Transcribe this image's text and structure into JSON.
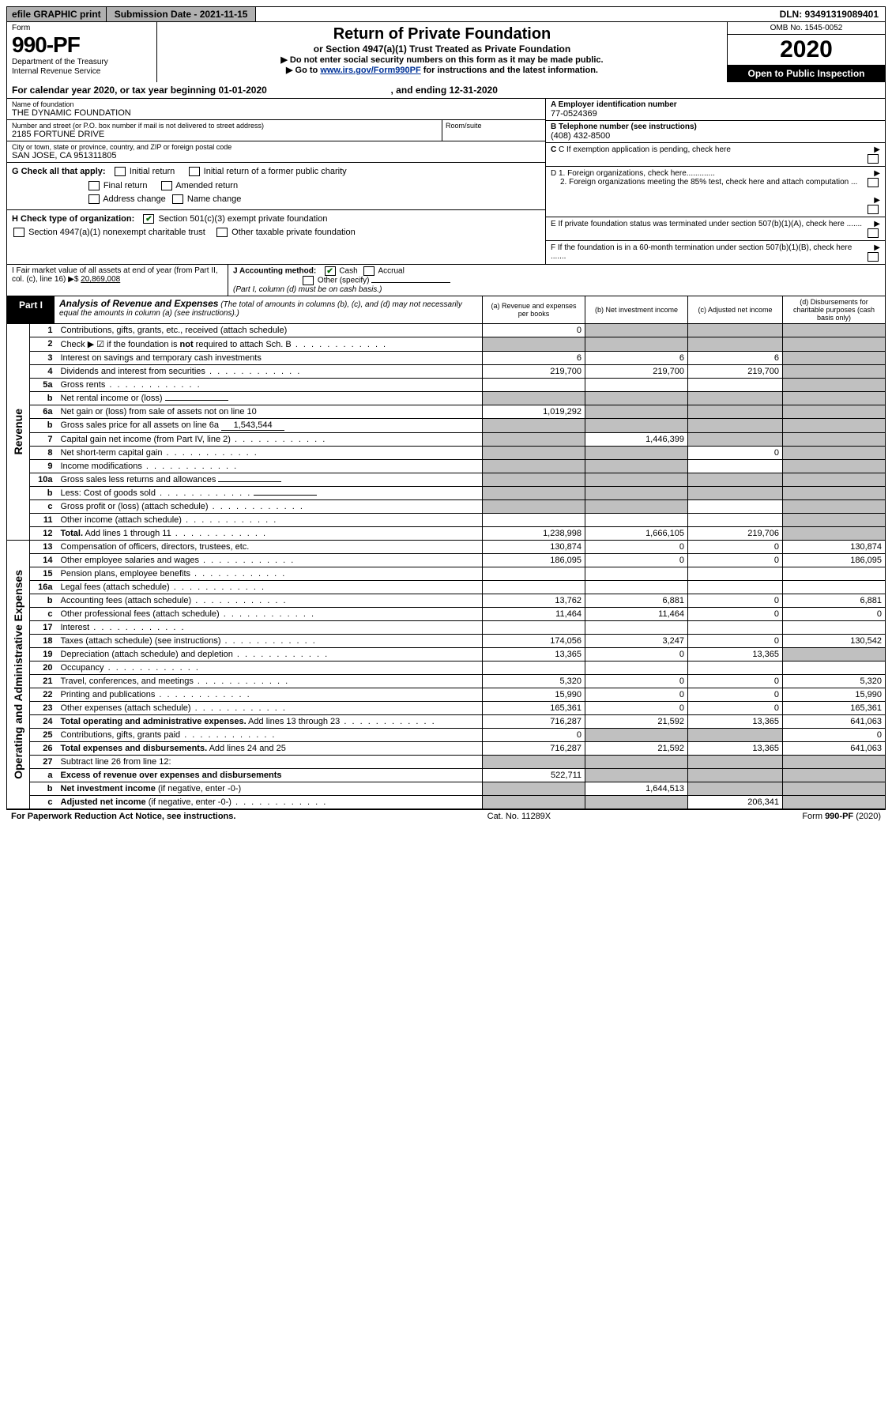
{
  "topbar": {
    "efile": "efile GRAPHIC print",
    "submission": "Submission Date - 2021-11-15",
    "dln": "DLN: 93491319089401"
  },
  "header": {
    "form_label": "Form",
    "form_number": "990-PF",
    "dept": "Department of the Treasury\nInternal Revenue Service",
    "title": "Return of Private Foundation",
    "subtitle1": "or Section 4947(a)(1) Trust Treated as Private Foundation",
    "subtitle2a": "▶ Do not enter social security numbers on this form as it may be made public.",
    "subtitle2b": "▶ Go to ",
    "link": "www.irs.gov/Form990PF",
    "subtitle2c": " for instructions and the latest information.",
    "omb": "OMB No. 1545-0052",
    "year": "2020",
    "open": "Open to Public Inspection"
  },
  "year_row": {
    "text_a": "For calendar year 2020, or tax year beginning 01-01-2020",
    "text_b": ", and ending 12-31-2020"
  },
  "foundation": {
    "name_label": "Name of foundation",
    "name": "THE DYNAMIC FOUNDATION",
    "addr_label": "Number and street (or P.O. box number if mail is not delivered to street address)",
    "addr": "2185 FORTUNE DRIVE",
    "room_label": "Room/suite",
    "city_label": "City or town, state or province, country, and ZIP or foreign postal code",
    "city": "SAN JOSE, CA  951311805"
  },
  "right_info": {
    "a_label": "A Employer identification number",
    "a_val": "77-0524369",
    "b_label": "B Telephone number (see instructions)",
    "b_val": "(408) 432-8500",
    "c_label": "C If exemption application is pending, check here",
    "d1": "D 1. Foreign organizations, check here.............",
    "d2": "2. Foreign organizations meeting the 85% test, check here and attach computation ...",
    "e": "E  If private foundation status was terminated under section 507(b)(1)(A), check here .......",
    "f": "F  If the foundation is in a 60-month termination under section 507(b)(1)(B), check here .......",
    "arrow": "▶"
  },
  "checks": {
    "g_label": "G Check all that apply:",
    "initial": "Initial return",
    "initial_former": "Initial return of a former public charity",
    "final": "Final return",
    "amended": "Amended return",
    "addr_change": "Address change",
    "name_change": "Name change",
    "h_label": "H Check type of organization:",
    "h1": "Section 501(c)(3) exempt private foundation",
    "h2": "Section 4947(a)(1) nonexempt charitable trust",
    "h3": "Other taxable private foundation"
  },
  "fmv": {
    "i_label": "I Fair market value of all assets at end of year (from Part II, col. (c), line 16) ▶$ ",
    "i_val": "20,869,008",
    "j_label": "J Accounting method:",
    "j_cash": "Cash",
    "j_accrual": "Accrual",
    "j_other": "Other (specify)",
    "j_note": "(Part I, column (d) must be on cash basis.)"
  },
  "part1": {
    "label": "Part I",
    "title": "Analysis of Revenue and Expenses",
    "note": "(The total of amounts in columns (b), (c), and (d) may not necessarily equal the amounts in column (a) (see instructions).)",
    "col_a": "(a)   Revenue and expenses per books",
    "col_b": "(b)  Net investment income",
    "col_c": "(c)  Adjusted net income",
    "col_d": "(d)  Disbursements for charitable purposes (cash basis only)"
  },
  "side_labels": {
    "revenue": "Revenue",
    "expenses": "Operating and Administrative Expenses"
  },
  "rows": [
    {
      "n": "1",
      "desc": "Contributions, gifts, grants, etc., received (attach schedule)",
      "a": "0",
      "b": "",
      "c": "",
      "d": "",
      "dGrey": true,
      "bGrey": true,
      "cGrey": true
    },
    {
      "n": "2",
      "desc": "Check ▶ ☑ if the foundation is <b>not</b> required to attach Sch. B",
      "a": "",
      "b": "",
      "c": "",
      "d": "",
      "aGrey": true,
      "bGrey": true,
      "cGrey": true,
      "dGrey": true,
      "dots": true
    },
    {
      "n": "3",
      "desc": "Interest on savings and temporary cash investments",
      "a": "6",
      "b": "6",
      "c": "6",
      "d": "",
      "dGrey": true
    },
    {
      "n": "4",
      "desc": "Dividends and interest from securities",
      "a": "219,700",
      "b": "219,700",
      "c": "219,700",
      "d": "",
      "dGrey": true,
      "dots": true
    },
    {
      "n": "5a",
      "desc": "Gross rents",
      "a": "",
      "b": "",
      "c": "",
      "d": "",
      "dGrey": true,
      "dots": true
    },
    {
      "n": "b",
      "desc": "Net rental income or (loss)  ",
      "a": "",
      "b": "",
      "c": "",
      "d": "",
      "aGrey": true,
      "bGrey": true,
      "cGrey": true,
      "dGrey": true,
      "inline": true
    },
    {
      "n": "6a",
      "desc": "Net gain or (loss) from sale of assets not on line 10",
      "a": "1,019,292",
      "b": "",
      "c": "",
      "d": "",
      "bGrey": true,
      "cGrey": true,
      "dGrey": true
    },
    {
      "n": "b",
      "desc": "Gross sales price for all assets on line 6a <span class='inline-line'>1,543,544</span>",
      "a": "",
      "b": "",
      "c": "",
      "d": "",
      "aGrey": true,
      "bGrey": true,
      "cGrey": true,
      "dGrey": true,
      "html": true
    },
    {
      "n": "7",
      "desc": "Capital gain net income (from Part IV, line 2)",
      "a": "",
      "b": "1,446,399",
      "c": "",
      "d": "",
      "aGrey": true,
      "cGrey": true,
      "dGrey": true,
      "dots": true
    },
    {
      "n": "8",
      "desc": "Net short-term capital gain",
      "a": "",
      "b": "",
      "c": "0",
      "d": "",
      "aGrey": true,
      "bGrey": true,
      "dGrey": true,
      "dots": true
    },
    {
      "n": "9",
      "desc": "Income modifications",
      "a": "",
      "b": "",
      "c": "",
      "d": "",
      "aGrey": true,
      "bGrey": true,
      "dGrey": true,
      "dots": true
    },
    {
      "n": "10a",
      "desc": "Gross sales less returns and allowances ",
      "a": "",
      "b": "",
      "c": "",
      "d": "",
      "aGrey": true,
      "bGrey": true,
      "cGrey": true,
      "dGrey": true,
      "inline": true
    },
    {
      "n": "b",
      "desc": "Less: Cost of goods sold",
      "a": "",
      "b": "",
      "c": "",
      "d": "",
      "aGrey": true,
      "bGrey": true,
      "cGrey": true,
      "dGrey": true,
      "dots": true,
      "inline": true
    },
    {
      "n": "c",
      "desc": "Gross profit or (loss) (attach schedule)",
      "a": "",
      "b": "",
      "c": "",
      "d": "",
      "aGrey": true,
      "bGrey": true,
      "dGrey": true,
      "dots": true
    },
    {
      "n": "11",
      "desc": "Other income (attach schedule)",
      "a": "",
      "b": "",
      "c": "",
      "d": "",
      "dGrey": true,
      "dots": true
    },
    {
      "n": "12",
      "desc": "<b>Total.</b> Add lines 1 through 11",
      "a": "1,238,998",
      "b": "1,666,105",
      "c": "219,706",
      "d": "",
      "dGrey": true,
      "dots": true,
      "html": true
    },
    {
      "n": "13",
      "desc": "Compensation of officers, directors, trustees, etc.",
      "a": "130,874",
      "b": "0",
      "c": "0",
      "d": "130,874",
      "section": "exp"
    },
    {
      "n": "14",
      "desc": "Other employee salaries and wages",
      "a": "186,095",
      "b": "0",
      "c": "0",
      "d": "186,095",
      "dots": true
    },
    {
      "n": "15",
      "desc": "Pension plans, employee benefits",
      "a": "",
      "b": "",
      "c": "",
      "d": "",
      "dots": true
    },
    {
      "n": "16a",
      "desc": "Legal fees (attach schedule)",
      "a": "",
      "b": "",
      "c": "",
      "d": "",
      "dots": true
    },
    {
      "n": "b",
      "desc": "Accounting fees (attach schedule)",
      "a": "13,762",
      "b": "6,881",
      "c": "0",
      "d": "6,881",
      "dots": true
    },
    {
      "n": "c",
      "desc": "Other professional fees (attach schedule)",
      "a": "11,464",
      "b": "11,464",
      "c": "0",
      "d": "0",
      "dots": true
    },
    {
      "n": "17",
      "desc": "Interest",
      "a": "",
      "b": "",
      "c": "",
      "d": "",
      "dots": true
    },
    {
      "n": "18",
      "desc": "Taxes (attach schedule) (see instructions)",
      "a": "174,056",
      "b": "3,247",
      "c": "0",
      "d": "130,542",
      "dots": true
    },
    {
      "n": "19",
      "desc": "Depreciation (attach schedule) and depletion",
      "a": "13,365",
      "b": "0",
      "c": "13,365",
      "d": "",
      "dGrey": true,
      "dots": true
    },
    {
      "n": "20",
      "desc": "Occupancy",
      "a": "",
      "b": "",
      "c": "",
      "d": "",
      "dots": true
    },
    {
      "n": "21",
      "desc": "Travel, conferences, and meetings",
      "a": "5,320",
      "b": "0",
      "c": "0",
      "d": "5,320",
      "dots": true
    },
    {
      "n": "22",
      "desc": "Printing and publications",
      "a": "15,990",
      "b": "0",
      "c": "0",
      "d": "15,990",
      "dots": true
    },
    {
      "n": "23",
      "desc": "Other expenses (attach schedule)",
      "a": "165,361",
      "b": "0",
      "c": "0",
      "d": "165,361",
      "dots": true
    },
    {
      "n": "24",
      "desc": "<b>Total operating and administrative expenses.</b> Add lines 13 through 23",
      "a": "716,287",
      "b": "21,592",
      "c": "13,365",
      "d": "641,063",
      "html": true,
      "dots": true
    },
    {
      "n": "25",
      "desc": "Contributions, gifts, grants paid",
      "a": "0",
      "b": "",
      "c": "",
      "d": "0",
      "bGrey": true,
      "cGrey": true,
      "dots": true
    },
    {
      "n": "26",
      "desc": "<b>Total expenses and disbursements.</b> Add lines 24 and 25",
      "a": "716,287",
      "b": "21,592",
      "c": "13,365",
      "d": "641,063",
      "html": true
    },
    {
      "n": "27",
      "desc": "Subtract line 26 from line 12:",
      "a": "",
      "b": "",
      "c": "",
      "d": "",
      "aGrey": true,
      "bGrey": true,
      "cGrey": true,
      "dGrey": true,
      "section": "end"
    },
    {
      "n": "a",
      "desc": "<b>Excess of revenue over expenses and disbursements</b>",
      "a": "522,711",
      "b": "",
      "c": "",
      "d": "",
      "bGrey": true,
      "cGrey": true,
      "dGrey": true,
      "html": true
    },
    {
      "n": "b",
      "desc": "<b>Net investment income</b> (if negative, enter -0-)",
      "a": "",
      "b": "1,644,513",
      "c": "",
      "d": "",
      "aGrey": true,
      "cGrey": true,
      "dGrey": true,
      "html": true
    },
    {
      "n": "c",
      "desc": "<b>Adjusted net income</b> (if negative, enter -0-)",
      "a": "",
      "b": "",
      "c": "206,341",
      "d": "",
      "aGrey": true,
      "bGrey": true,
      "dGrey": true,
      "html": true,
      "dots": true
    }
  ],
  "footer": {
    "left": "For Paperwork Reduction Act Notice, see instructions.",
    "mid": "Cat. No. 11289X",
    "right": "Form 990-PF (2020)"
  }
}
